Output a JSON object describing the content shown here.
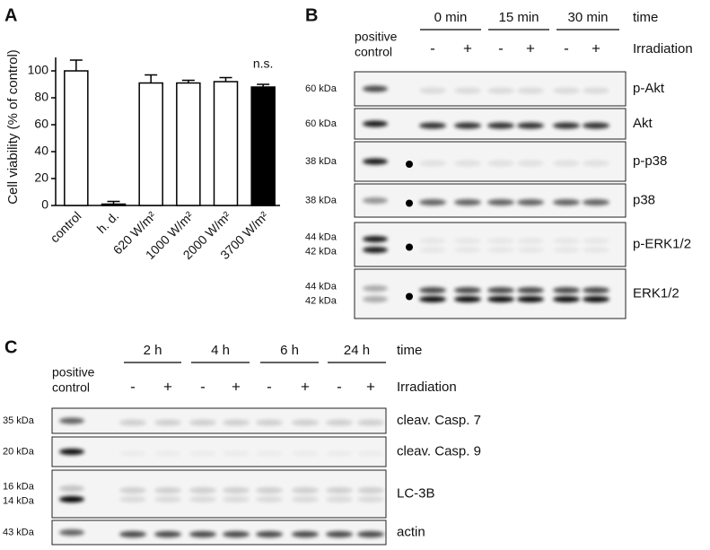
{
  "panel_a": {
    "label": "A"
  },
  "chart_data": {
    "type": "bar",
    "ylabel": "Cell viability (% of control)",
    "categories": [
      "control",
      "h. d.",
      "620 W/m²",
      "1000 W/m²",
      "2000 W/m²",
      "3700 W/m²"
    ],
    "values": [
      100,
      1,
      91,
      91,
      92,
      88
    ],
    "errors": [
      8,
      2,
      6,
      2,
      3,
      2
    ],
    "colors": [
      "#ffffff",
      "#ffffff",
      "#ffffff",
      "#ffffff",
      "#ffffff",
      "#000000"
    ],
    "ylim": [
      0,
      110
    ],
    "yticks": [
      0,
      20,
      40,
      60,
      80,
      100
    ],
    "annotation": "n.s."
  },
  "panel_b": {
    "label": "B",
    "times": [
      "0 min",
      "15 min",
      "30 min"
    ],
    "time_label": "time",
    "positive_control": [
      "positive",
      "control"
    ],
    "signs": [
      "-",
      "+",
      "-",
      "+",
      "-",
      "+"
    ],
    "irradiation_label": "Irradiation",
    "rows": [
      {
        "kda": [
          "60 kDa"
        ],
        "name": "p-Akt"
      },
      {
        "kda": [
          "60 kDa"
        ],
        "name": "Akt"
      },
      {
        "kda": [
          "38 kDa"
        ],
        "name": "p-p38"
      },
      {
        "kda": [
          "38 kDa"
        ],
        "name": "p38"
      },
      {
        "kda": [
          "44 kDa",
          "42 kDa"
        ],
        "name": "p-ERK1/2"
      },
      {
        "kda": [
          "44 kDa",
          "42 kDa"
        ],
        "name": "ERK1/2"
      }
    ]
  },
  "panel_c": {
    "label": "C",
    "times": [
      "2 h",
      "4 h",
      "6 h",
      "24 h"
    ],
    "time_label": "time",
    "positive_control": [
      "positive",
      "control"
    ],
    "signs": [
      "-",
      "+",
      "-",
      "+",
      "-",
      "+",
      "-",
      "+"
    ],
    "irradiation_label": "Irradiation",
    "rows": [
      {
        "kda": [
          "35 kDa"
        ],
        "name": "cleav. Casp. 7"
      },
      {
        "kda": [
          "20 kDa"
        ],
        "name": "cleav. Casp. 9"
      },
      {
        "kda": [
          "16 kDa",
          "14 kDa"
        ],
        "name": "LC-3B"
      },
      {
        "kda": [
          "43 kDa"
        ],
        "name": "actin"
      }
    ]
  }
}
